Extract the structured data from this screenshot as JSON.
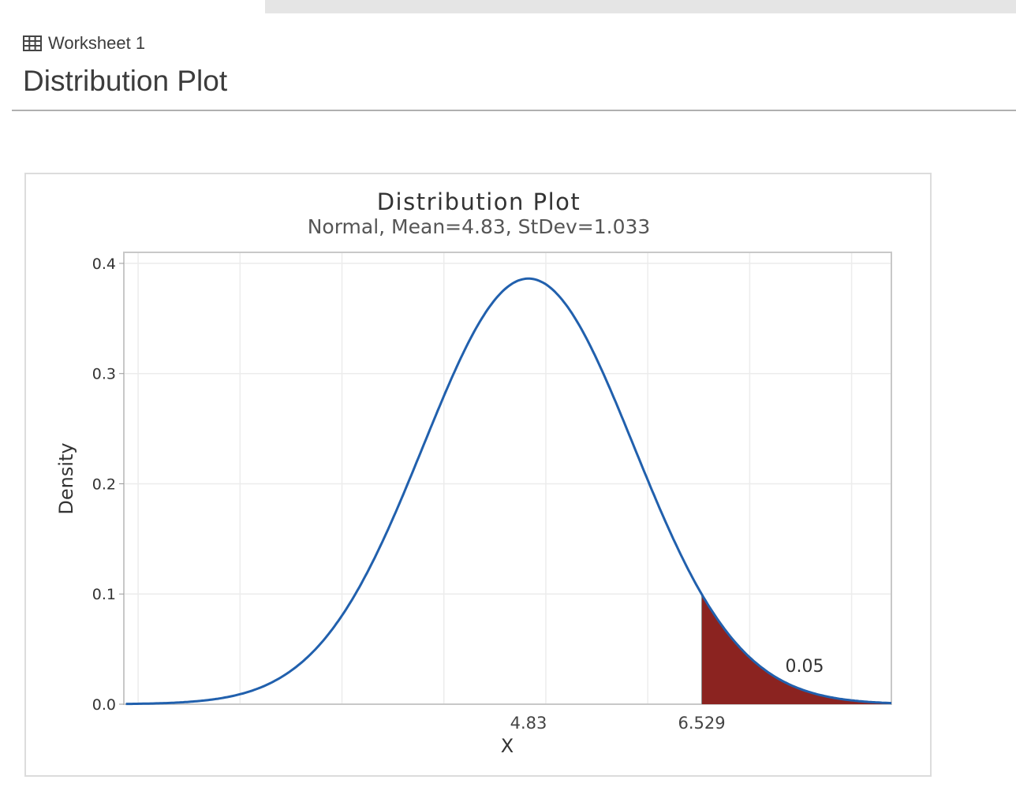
{
  "header": {
    "worksheet_icon": "table-grid-icon",
    "worksheet_label": "Worksheet 1",
    "page_title": "Distribution Plot"
  },
  "colors": {
    "curve": "#2160ad",
    "shade": "#8b2320",
    "grid": "#ececec",
    "frame": "#c8c8c8",
    "text": "#3a3a3a"
  },
  "chart_data": {
    "type": "area",
    "title": "Distribution Plot",
    "subtitle": "Normal, Mean=4.83, StDev=1.033",
    "distribution": "Normal",
    "mean": 4.83,
    "stdev": 1.033,
    "xlabel": "X",
    "ylabel": "Density",
    "xlim": [
      0.86,
      8.39
    ],
    "ylim": [
      0.0,
      0.41
    ],
    "y_ticks": [
      0.0,
      0.1,
      0.2,
      0.3,
      0.4
    ],
    "y_tick_labels": [
      "0.0",
      "0.1",
      "0.2",
      "0.3",
      "0.4"
    ],
    "x_ticks": [
      4.83,
      6.529
    ],
    "x_tick_labels": [
      "4.83",
      "6.529"
    ],
    "x_gridlines": [
      1,
      2,
      3,
      4,
      5,
      6,
      7,
      8
    ],
    "grid": true,
    "shaded_region": {
      "from": 6.529,
      "to": 8.39,
      "tail": "right",
      "probability": 0.05
    },
    "annotation": {
      "text": "0.05",
      "x": 7.9,
      "y": 0.035
    },
    "peak_density": 0.386
  }
}
